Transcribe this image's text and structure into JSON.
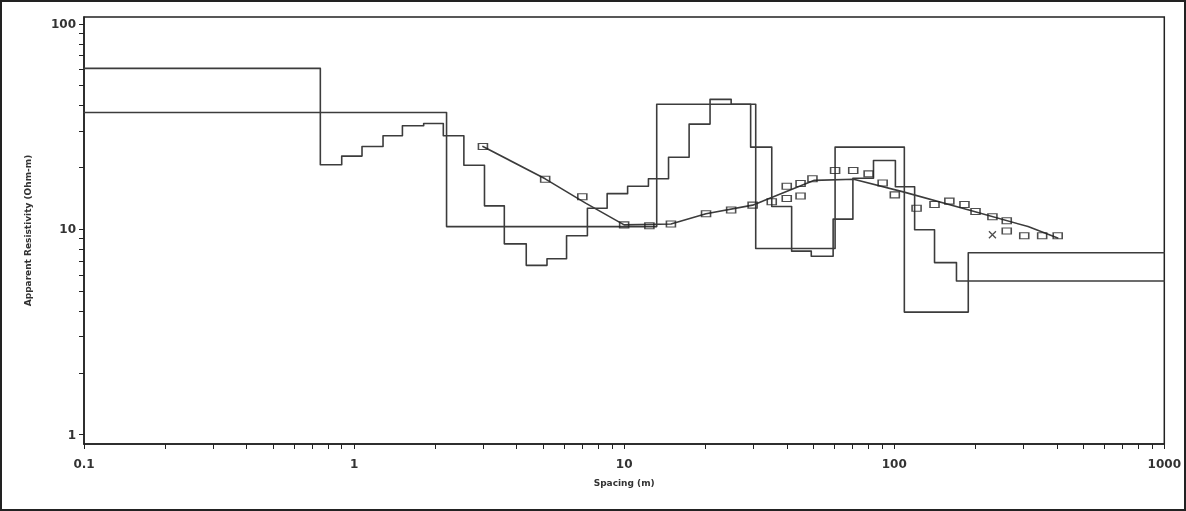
{
  "chart_data": {
    "type": "line",
    "xlabel": "Spacing (m)",
    "ylabel": "Apparent Resistivity (Ohm-m)",
    "log": "xy",
    "grid": false,
    "xlim": [
      0.1,
      1000
    ],
    "ylim": [
      0.9,
      108
    ],
    "xticks": [
      0.1,
      {
        "value": 0.2,
        "label": null
      },
      {
        "value": 0.3,
        "label": null
      },
      {
        "value": 0.4,
        "label": null
      },
      {
        "value": 0.5,
        "label": null
      },
      {
        "value": 0.6,
        "label": null
      },
      {
        "value": 0.7,
        "label": null
      },
      {
        "value": 0.8,
        "label": null
      },
      {
        "value": 0.9,
        "label": null
      },
      1,
      {
        "value": 2,
        "label": null
      },
      {
        "value": 3,
        "label": null
      },
      {
        "value": 4,
        "label": null
      },
      {
        "value": 5,
        "label": null
      },
      {
        "value": 6,
        "label": null
      },
      {
        "value": 7,
        "label": null
      },
      {
        "value": 8,
        "label": null
      },
      {
        "value": 9,
        "label": null
      },
      10,
      {
        "value": 20,
        "label": null
      },
      {
        "value": 30,
        "label": null
      },
      {
        "value": 40,
        "label": null
      },
      {
        "value": 50,
        "label": null
      },
      {
        "value": 60,
        "label": null
      },
      {
        "value": 70,
        "label": null
      },
      {
        "value": 80,
        "label": null
      },
      {
        "value": 90,
        "label": null
      },
      100,
      {
        "value": 200,
        "label": null
      },
      {
        "value": 300,
        "label": null
      },
      {
        "value": 400,
        "label": null
      },
      {
        "value": 500,
        "label": null
      },
      {
        "value": 600,
        "label": null
      },
      {
        "value": 700,
        "label": null
      },
      {
        "value": 800,
        "label": null
      },
      {
        "value": 900,
        "label": null
      },
      1000
    ],
    "yticks": [
      1,
      {
        "value": 2,
        "label": null
      },
      {
        "value": 3,
        "label": null
      },
      {
        "value": 4,
        "label": null
      },
      {
        "value": 5,
        "label": null
      },
      {
        "value": 6,
        "label": null
      },
      {
        "value": 7,
        "label": null
      },
      {
        "value": 8,
        "label": null
      },
      {
        "value": 9,
        "label": null
      },
      10,
      {
        "value": 20,
        "label": null
      },
      {
        "value": 30,
        "label": null
      },
      {
        "value": 40,
        "label": null
      },
      {
        "value": 50,
        "label": null
      },
      {
        "value": 60,
        "label": null
      },
      {
        "value": 70,
        "label": null
      },
      {
        "value": 80,
        "label": null
      },
      {
        "value": 90,
        "label": null
      },
      100
    ],
    "series": [
      {
        "type": "step",
        "color": "#3c3c3c",
        "marker": "none",
        "x": [
          0.1,
          0.75,
          0.9,
          1.07,
          1.28,
          1.51,
          1.81,
          2.14,
          2.55,
          3.04,
          3.6,
          4.34,
          5.18,
          6.12,
          7.31,
          8.65,
          10.3,
          12.3,
          14.6,
          17.4,
          20.8,
          24.9,
          29.4,
          35.2,
          41.7,
          49.3,
          59.4,
          70.3,
          83.8,
          101,
          119,
          141,
          170,
          1000
        ],
        "values": [
          60.7,
          20.6,
          22.7,
          25.3,
          28.5,
          31.9,
          32.7,
          28.5,
          20.5,
          13.0,
          8.49,
          6.67,
          7.18,
          9.3,
          12.65,
          14.9,
          16.2,
          17.6,
          22.4,
          32.5,
          42.9,
          40.6,
          25.1,
          12.9,
          7.82,
          7.39,
          11.2,
          17.7,
          21.6,
          16.1,
          9.94,
          6.88,
          5.6,
          5.6
        ]
      },
      {
        "type": "step",
        "color": "#3c3c3c",
        "marker": "none",
        "x": [
          0.1,
          2.2,
          13.2,
          30.7,
          60.4,
          109,
          188,
          1000
        ],
        "values": [
          37,
          10.3,
          40.6,
          8.06,
          25.1,
          3.95,
          7.68,
          7.68
        ]
      },
      {
        "type": "line",
        "color": "#3c3c3c",
        "marker": "none",
        "x": [
          3.0,
          5.1,
          7.2,
          10.0,
          14.9,
          20.1,
          29.9,
          50.6,
          70.8,
          108,
          189,
          313,
          403
        ],
        "values": [
          25.3,
          17.6,
          13.4,
          10.5,
          10.6,
          11.9,
          13.1,
          17.3,
          17.5,
          15.2,
          12.4,
          10.3,
          9.07
        ]
      },
      {
        "type": "scatter",
        "color": "#222222",
        "marker": "square",
        "x": [
          3.0,
          5.1,
          7.0,
          10,
          12.4,
          14.9,
          20.1,
          24.9,
          29.9,
          35.2,
          40,
          40,
          45,
          45,
          49.8,
          60.4,
          70.5,
          80.4,
          90.6,
          100.5,
          121,
          141,
          160,
          182,
          200,
          231,
          261,
          261,
          303,
          353,
          403
        ],
        "values": [
          25.3,
          17.5,
          14.4,
          10.5,
          10.4,
          10.6,
          11.9,
          12.4,
          13.1,
          13.6,
          14.1,
          16.2,
          16.7,
          14.5,
          17.6,
          19.3,
          19.3,
          18.6,
          16.8,
          14.7,
          12.65,
          13.2,
          13.7,
          13.2,
          12.2,
          11.5,
          11.0,
          9.8,
          9.3,
          9.3,
          9.3
        ]
      },
      {
        "type": "scatter",
        "color": "#222222",
        "marker": "cross",
        "x": [
          231
        ],
        "values": [
          9.4
        ]
      }
    ]
  }
}
